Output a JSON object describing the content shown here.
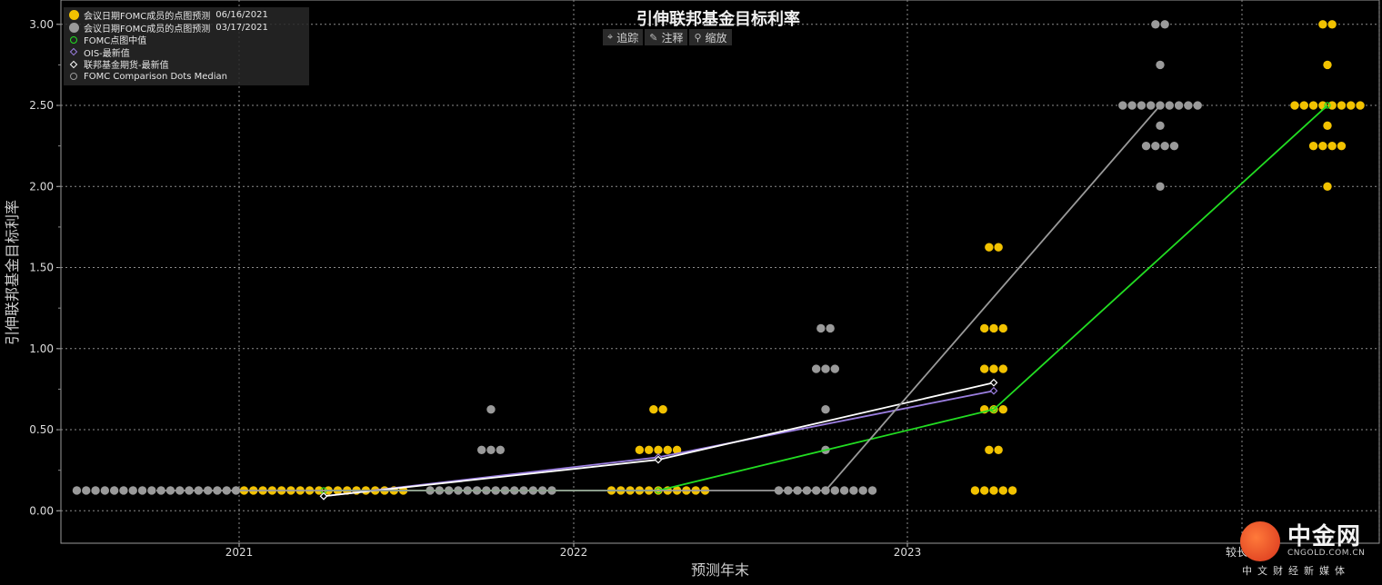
{
  "chart_data": {
    "type": "scatter",
    "title": "引伸联邦基金目标利率",
    "xlabel": "预测年末",
    "ylabel": "引伸联邦基金目标利率",
    "ylim": [
      -0.2,
      3.15
    ],
    "y_ticks": [
      0.0,
      0.5,
      1.0,
      1.5,
      2.0,
      2.5,
      3.0
    ],
    "y_tick_labels": [
      "0.00",
      "0.50",
      "1.00",
      "1.50",
      "2.00",
      "2.50",
      "3.00"
    ],
    "x_ticks": [
      "2021",
      "2022",
      "2023",
      "较长期"
    ],
    "grid": true,
    "legend_position": "top-left",
    "legend": [
      {
        "label": "会议日期FOMC成员的点图预测",
        "date": "06/16/2021",
        "symbol": "dot",
        "color": "#f2c200"
      },
      {
        "label": "会议日期FOMC成员的点图预测",
        "date": "03/17/2021",
        "symbol": "dot",
        "color": "#9a9a9a"
      },
      {
        "label": "FOMC点图中值",
        "date": "",
        "symbol": "ring",
        "color": "#22dd22"
      },
      {
        "label": "OIS-最新值",
        "date": "",
        "symbol": "diamond",
        "color": "#9b7ee0"
      },
      {
        "label": "联邦基金期货-最新值",
        "date": "",
        "symbol": "diamond",
        "color": "#ffffff"
      },
      {
        "label": "FOMC Comparison Dots Median",
        "date": "",
        "symbol": "ring",
        "color": "#9a9a9a"
      }
    ],
    "dots": [
      {
        "group": "2021",
        "series": "03/17/2021",
        "color": "#9a9a9a",
        "counts": [
          {
            "y": 0.125,
            "n": 18
          }
        ]
      },
      {
        "group": "2021",
        "series": "06/16/2021",
        "color": "#f2c200",
        "counts": [
          {
            "y": 0.125,
            "n": 18
          }
        ]
      },
      {
        "group": "2022",
        "series": "03/17/2021",
        "color": "#9a9a9a",
        "counts": [
          {
            "y": 0.125,
            "n": 14
          },
          {
            "y": 0.375,
            "n": 3
          },
          {
            "y": 0.625,
            "n": 1
          }
        ]
      },
      {
        "group": "2022",
        "series": "06/16/2021",
        "color": "#f2c200",
        "counts": [
          {
            "y": 0.125,
            "n": 11
          },
          {
            "y": 0.375,
            "n": 5
          },
          {
            "y": 0.625,
            "n": 2
          }
        ]
      },
      {
        "group": "2023",
        "series": "03/17/2021",
        "color": "#9a9a9a",
        "counts": [
          {
            "y": 0.125,
            "n": 11
          },
          {
            "y": 0.375,
            "n": 1
          },
          {
            "y": 0.625,
            "n": 1
          },
          {
            "y": 0.875,
            "n": 3
          },
          {
            "y": 1.125,
            "n": 2
          }
        ]
      },
      {
        "group": "2023",
        "series": "06/16/2021",
        "color": "#f2c200",
        "counts": [
          {
            "y": 0.125,
            "n": 5
          },
          {
            "y": 0.375,
            "n": 2
          },
          {
            "y": 0.625,
            "n": 3
          },
          {
            "y": 0.875,
            "n": 3
          },
          {
            "y": 1.125,
            "n": 3
          },
          {
            "y": 1.625,
            "n": 2
          }
        ]
      },
      {
        "group": "较长期",
        "series": "03/17/2021",
        "color": "#9a9a9a",
        "counts": [
          {
            "y": 2.0,
            "n": 1
          },
          {
            "y": 2.25,
            "n": 4
          },
          {
            "y": 2.375,
            "n": 1
          },
          {
            "y": 2.5,
            "n": 9
          },
          {
            "y": 2.75,
            "n": 1
          },
          {
            "y": 3.0,
            "n": 2
          }
        ]
      },
      {
        "group": "较长期",
        "series": "06/16/2021",
        "color": "#f2c200",
        "counts": [
          {
            "y": 2.0,
            "n": 1
          },
          {
            "y": 2.25,
            "n": 4
          },
          {
            "y": 2.375,
            "n": 1
          },
          {
            "y": 2.5,
            "n": 8
          },
          {
            "y": 2.75,
            "n": 1
          },
          {
            "y": 3.0,
            "n": 2
          }
        ]
      }
    ],
    "lines": [
      {
        "name": "FOMC点图中值",
        "color": "#22dd22",
        "points": [
          [
            "2021",
            0.125
          ],
          [
            "2022",
            0.125
          ],
          [
            "2023",
            0.625
          ],
          [
            "较长期",
            2.5
          ]
        ]
      },
      {
        "name": "OIS-最新值",
        "color": "#9b7ee0",
        "points": [
          [
            "2021",
            0.09
          ],
          [
            "2022",
            0.33
          ],
          [
            "2023",
            0.74
          ]
        ]
      },
      {
        "name": "联邦基金期货-最新值",
        "color": "#ffffff",
        "points": [
          [
            "2021",
            0.09
          ],
          [
            "2022",
            0.315
          ],
          [
            "2023",
            0.79
          ]
        ]
      },
      {
        "name": "FOMC Comparison Dots Median",
        "color": "#9a9a9a",
        "points": [
          [
            "2021",
            0.125
          ],
          [
            "2022",
            0.125
          ],
          [
            "2023",
            0.125
          ],
          [
            "较长期",
            2.5
          ]
        ]
      }
    ]
  },
  "toolbar": {
    "track_label": "追踪",
    "annotate_label": "注释",
    "zoom_label": "缩放",
    "track_icon": "crosshair-icon",
    "annotate_icon": "pencil-icon",
    "zoom_icon": "magnifier-icon"
  },
  "logo": {
    "name": "中金网",
    "domain": "CNGOLD.COM.CN",
    "tagline": "中文财经新媒体"
  }
}
